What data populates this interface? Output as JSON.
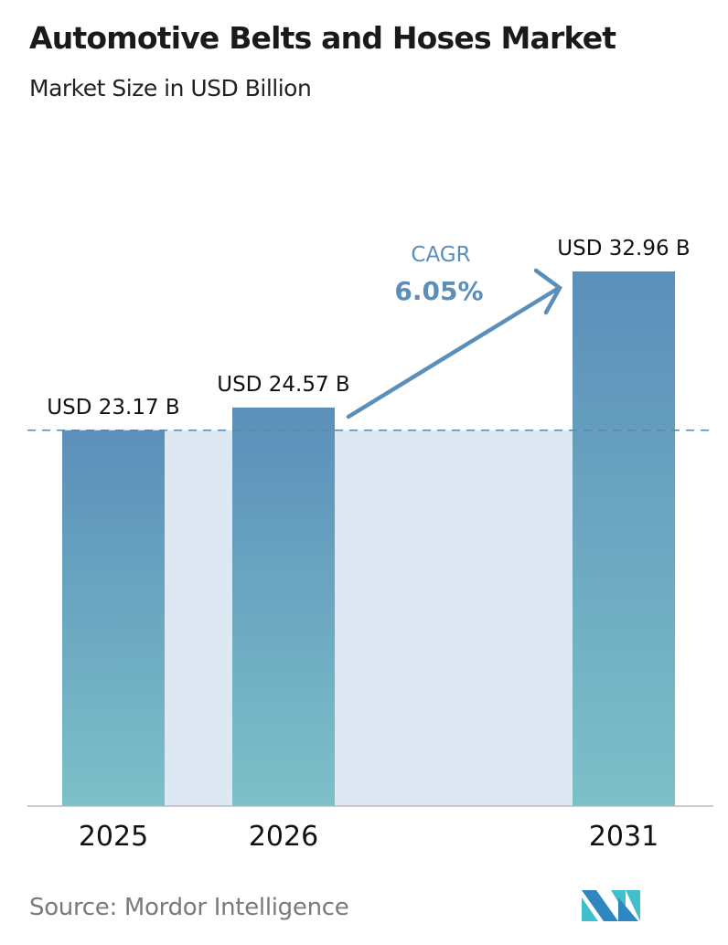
{
  "title": "Automotive Belts and Hoses Market",
  "subtitle": "Market Size in USD Billion",
  "source": "Source:  Mordor Intelligence",
  "logo_text": "Mordor Intelligence",
  "colors": {
    "bar_top": "#5b8fba",
    "bar_bottom": "#7cc0c8",
    "band": "#dde8f2",
    "cagr": "#5b8fba",
    "dash": "#5b87ab",
    "logo_dark": "#2f86c0",
    "logo_light": "#3fc0cc"
  },
  "chart_data": {
    "type": "bar",
    "categories": [
      "2025",
      "2026",
      "2031"
    ],
    "values": [
      23.17,
      24.57,
      32.96
    ],
    "data_labels": [
      "USD 23.17 B",
      "USD 24.57 B",
      "USD 32.96 B"
    ],
    "ylim": [
      0,
      33
    ],
    "grid": false,
    "annotation": {
      "label": "CAGR",
      "value": "6.05%"
    }
  }
}
